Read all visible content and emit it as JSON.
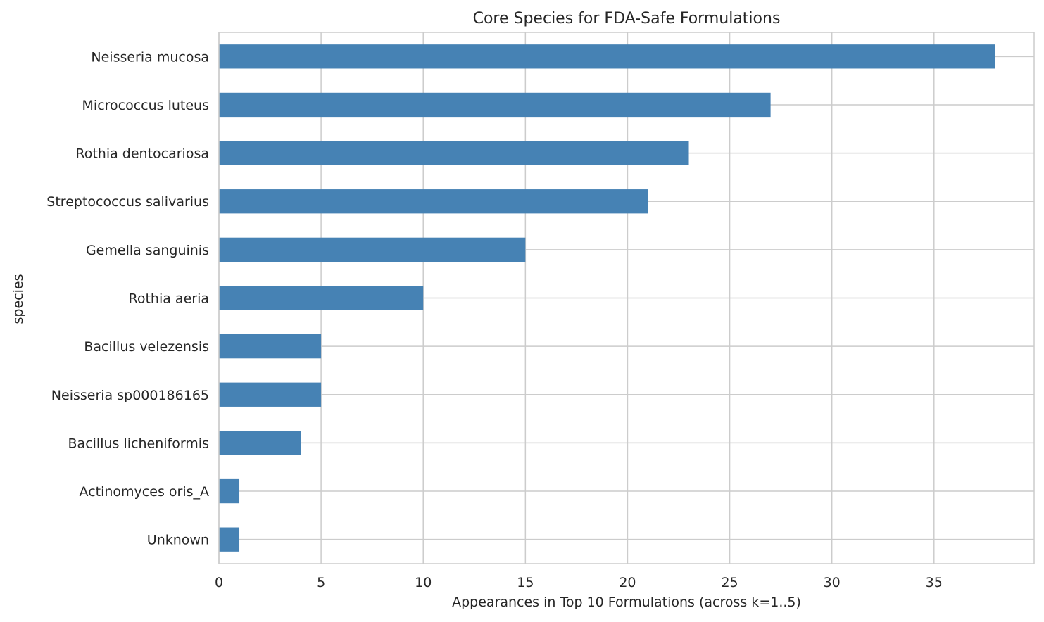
{
  "chart_data": {
    "type": "bar",
    "orientation": "horizontal",
    "title": "Core Species for FDA-Safe Formulations",
    "xlabel": "Appearances in Top 10 Formulations (across k=1..5)",
    "ylabel": "species",
    "categories": [
      "Neisseria mucosa",
      "Micrococcus luteus",
      "Rothia dentocariosa",
      "Streptococcus salivarius",
      "Gemella sanguinis",
      "Rothia aeria",
      "Bacillus velezensis",
      "Neisseria sp000186165",
      "Bacillus licheniformis",
      "Actinomyces oris_A",
      "Unknown"
    ],
    "values": [
      38,
      27,
      23,
      21,
      15,
      10,
      5,
      5,
      4,
      1,
      1
    ],
    "xlim": [
      0,
      39.9
    ],
    "xticks": [
      0,
      5,
      10,
      15,
      20,
      25,
      30,
      35
    ],
    "grid": true,
    "bar_color": "#4682b4",
    "grid_color": "#cccccc"
  }
}
